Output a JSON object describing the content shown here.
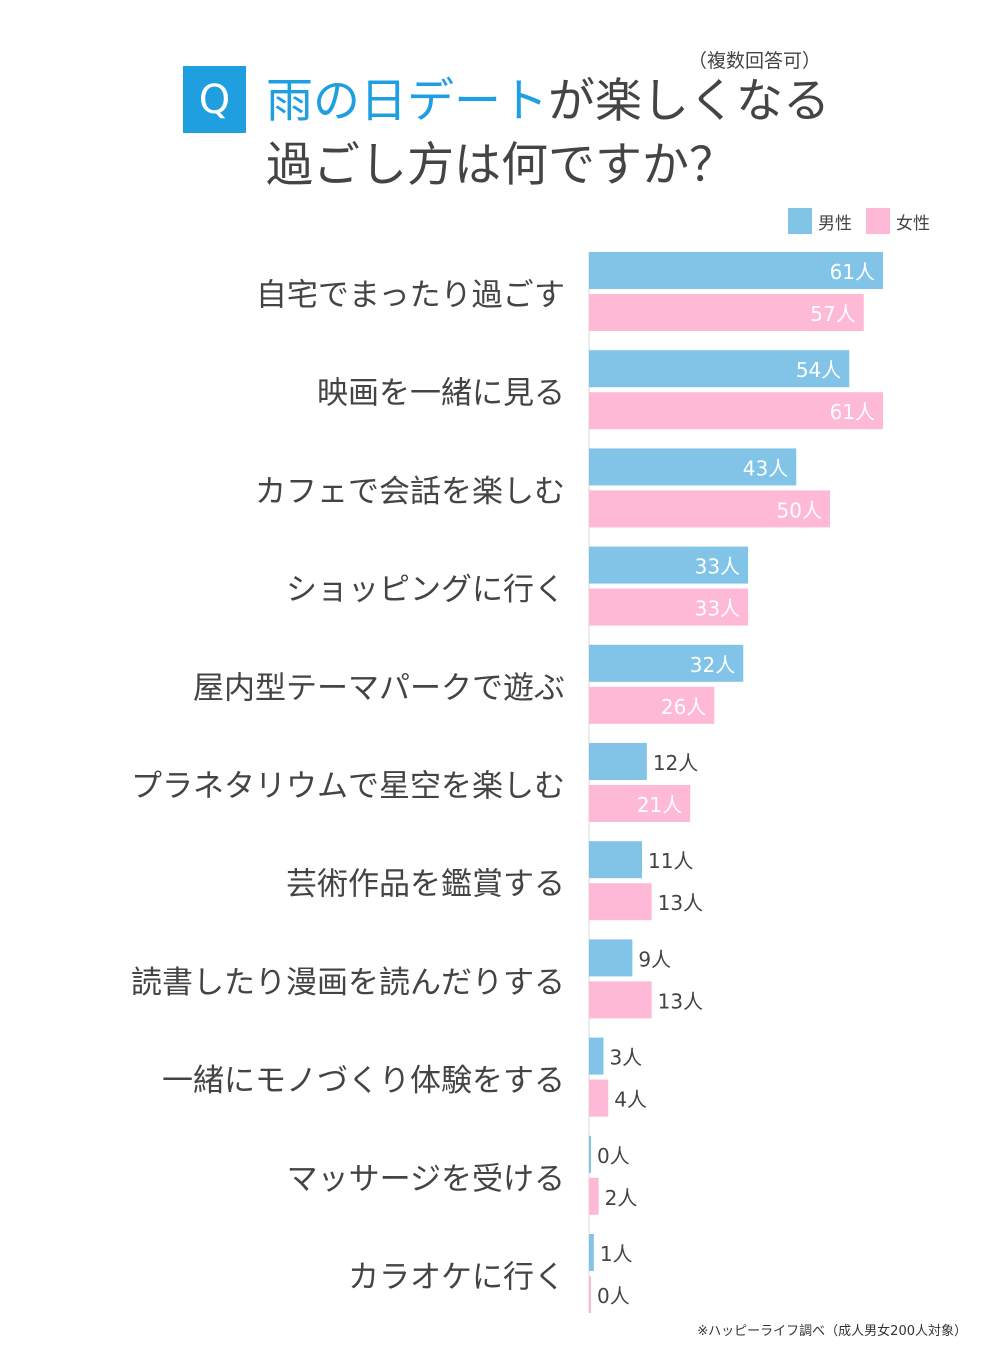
{
  "header": {
    "q_badge": "Q",
    "title_highlight": "雨の日デート",
    "title_rest_line1": "が楽しくなる",
    "title_line2": "過ごし方は何ですか？",
    "note": "（複数回答可）"
  },
  "source": "※ハッピーライフ調べ（成人男女200人対象）",
  "unit_suffix": "人",
  "colors": {
    "male": "#82c4e8",
    "female": "#fdb9d6",
    "highlight": "#1f9fe0"
  },
  "chart_data": {
    "type": "bar",
    "orientation": "horizontal",
    "categories": [
      "自宅でまったり過ごす",
      "映画を一緒に見る",
      "カフェで会話を楽しむ",
      "ショッピングに行く",
      "屋内型テーマパークで遊ぶ",
      "プラネタリウムで星空を楽しむ",
      "芸術作品を鑑賞する",
      "読書したり漫画を読んだりする",
      "一緒にモノづくり体験をする",
      "マッサージを受ける",
      "カラオケに行く"
    ],
    "series": [
      {
        "name": "男性",
        "values": [
          61,
          54,
          43,
          33,
          32,
          12,
          11,
          9,
          3,
          0,
          1
        ]
      },
      {
        "name": "女性",
        "values": [
          57,
          61,
          50,
          33,
          26,
          21,
          13,
          13,
          4,
          2,
          0
        ]
      }
    ],
    "legend": "top-right",
    "grid": false
  }
}
